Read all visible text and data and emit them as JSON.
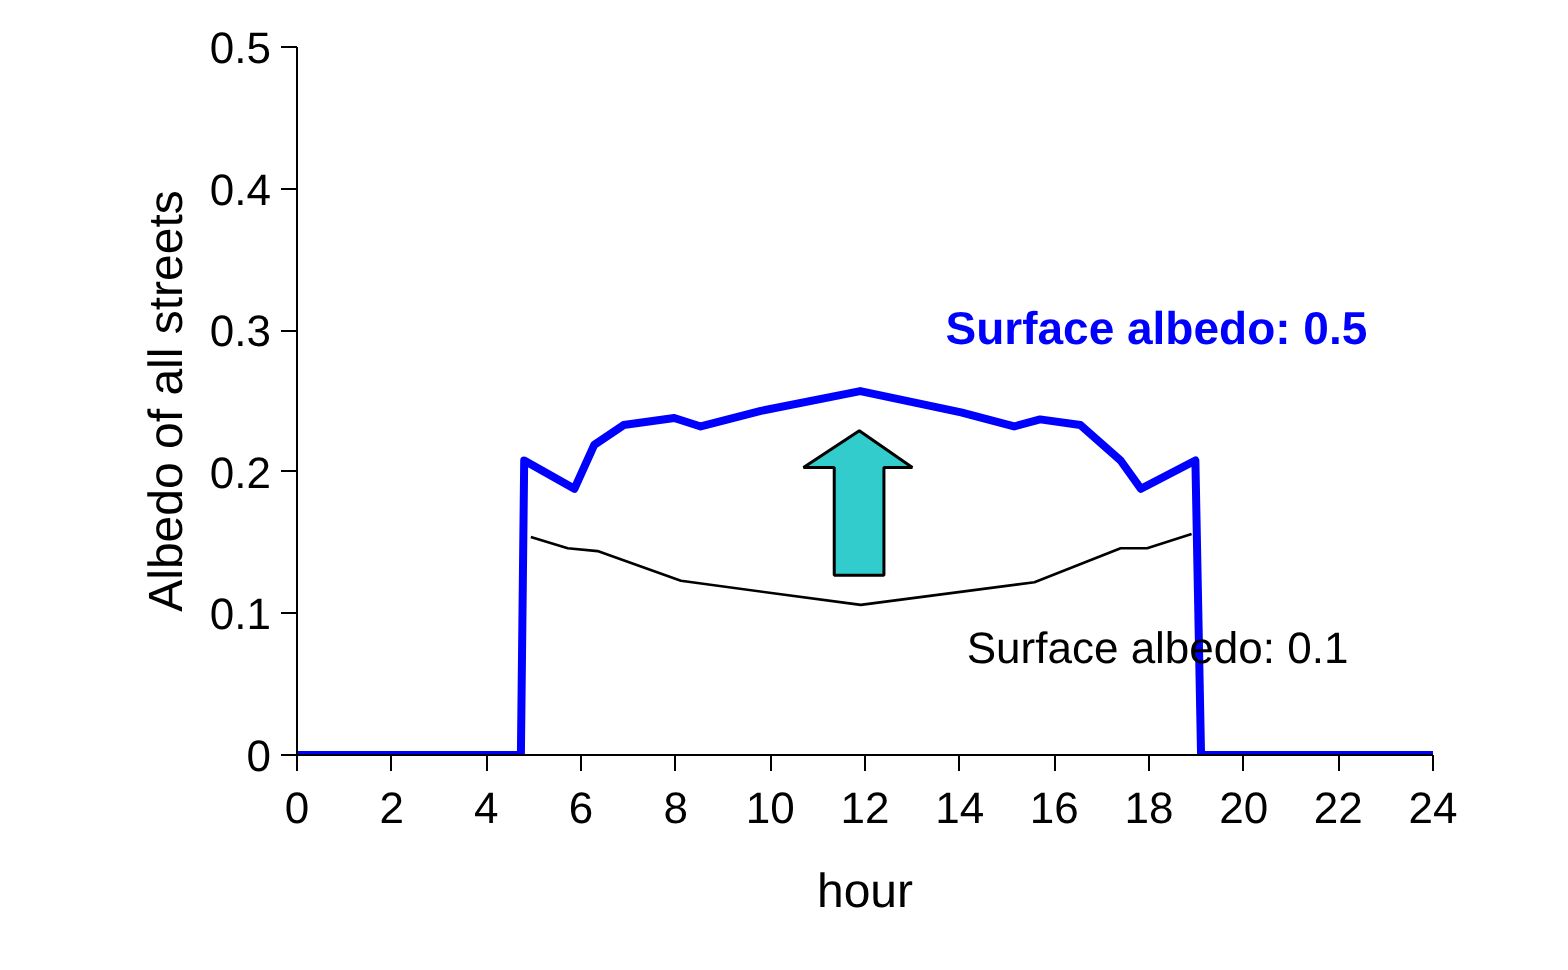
{
  "chart_data": {
    "type": "line",
    "xlabel": "hour",
    "ylabel": "Albedo of all streets",
    "xlim": [
      0,
      24
    ],
    "xticks": [
      0,
      2,
      4,
      6,
      8,
      10,
      12,
      14,
      16,
      18,
      20,
      22,
      24
    ],
    "ylim": [
      0,
      0.5
    ],
    "yticks": [
      0,
      0.1,
      0.2,
      0.3,
      0.4,
      0.5
    ],
    "grid": false,
    "marker": "none",
    "line_style": "solid",
    "series": [
      {
        "name": "Surface albedo: 0.5",
        "color": "#0000ff",
        "x": [
          0,
          4.73,
          4.8,
          5.86,
          6.28,
          6.9,
          7.97,
          8.53,
          9.8,
          11.9,
          14.03,
          15.15,
          15.7,
          16.55,
          17.4,
          17.83,
          18.98,
          19.1,
          24
        ],
        "values": [
          0,
          0,
          0.208,
          0.188,
          0.219,
          0.233,
          0.238,
          0.232,
          0.243,
          0.257,
          0.242,
          0.232,
          0.237,
          0.233,
          0.208,
          0.188,
          0.208,
          0,
          0
        ]
      },
      {
        "name": "Surface albedo: 0.1",
        "color": "#000000",
        "x": [
          4.94,
          5.72,
          6.35,
          8.11,
          11.91,
          15.58,
          17.4,
          17.96,
          18.9
        ],
        "values": [
          0.154,
          0.146,
          0.144,
          0.123,
          0.106,
          0.122,
          0.146,
          0.146,
          0.156
        ]
      }
    ]
  }
}
